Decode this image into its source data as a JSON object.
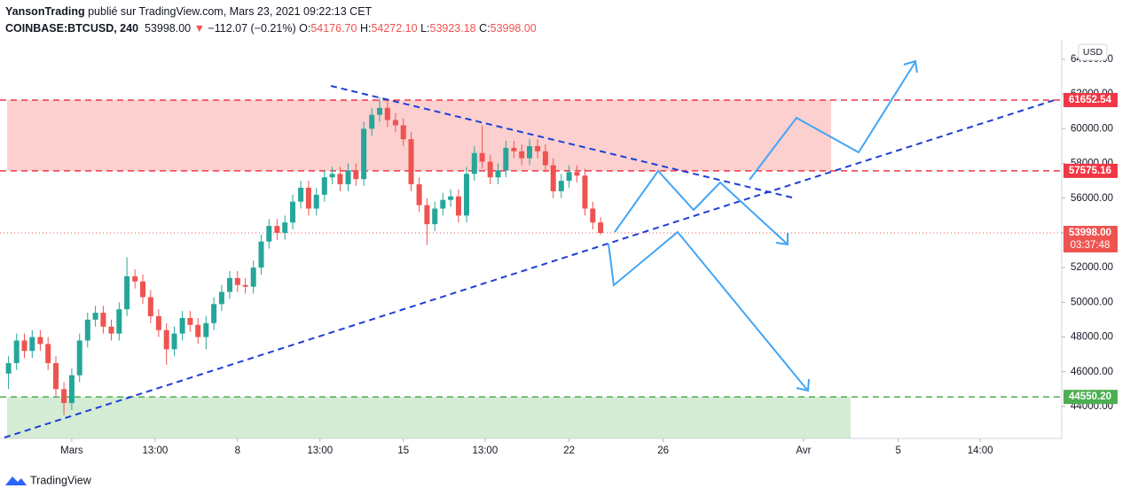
{
  "header": {
    "author": "YansonTrading",
    "published": "publié sur TradingView.com, Mars 23, 2021 09:22:13 CET",
    "symbol": "COINBASE:BTCUSD, 240",
    "price": "53998.00",
    "arrow": "▼",
    "change": "−112.07 (−0.21%)",
    "ohlc": [
      {
        "key": "O:",
        "value": "54176.70"
      },
      {
        "key": "H:",
        "value": "54272.10"
      },
      {
        "key": "L:",
        "value": "53923.18"
      },
      {
        "key": "C:",
        "value": "53998.00"
      }
    ]
  },
  "brand": "TradingView",
  "chart_data": {
    "type": "candlestick",
    "currency": "USD",
    "x": [
      -2.67,
      -2.33,
      -2,
      -1.67,
      -1.33,
      -1,
      -0.67,
      -0.33,
      0,
      0.33,
      0.67,
      1,
      1.33,
      1.67,
      2,
      2.33,
      2.67,
      3,
      3.33,
      3.67,
      4,
      4.33,
      4.67,
      5,
      5.33,
      5.67,
      6,
      6.33,
      6.67,
      7,
      7.33,
      7.67,
      8,
      8.33,
      8.67,
      9,
      9.33,
      9.67,
      10,
      10.33,
      10.67,
      11,
      11.33,
      11.67,
      12,
      12.33,
      12.67,
      13,
      13.33,
      13.67,
      14,
      14.33,
      14.67,
      15,
      15.33,
      15.67,
      16,
      16.33,
      16.67,
      17,
      17.33,
      17.67,
      18,
      18.33,
      18.67,
      19,
      19.33,
      19.67,
      20,
      20.33,
      20.67,
      21,
      21.33,
      21.67,
      22,
      22.33
    ],
    "open": [
      45900,
      46500,
      47800,
      47200,
      48000,
      47600,
      46500,
      45000,
      44200,
      45800,
      47800,
      49000,
      49400,
      48600,
      48200,
      49600,
      51500,
      51200,
      50300,
      49200,
      48400,
      47300,
      48200,
      49100,
      48700,
      48000,
      48800,
      49900,
      50600,
      51400,
      51000,
      50900,
      52000,
      53500,
      54400,
      54000,
      54600,
      55800,
      56600,
      55400,
      56200,
      57200,
      57400,
      56800,
      57600,
      57100,
      60000,
      60800,
      61200,
      60500,
      60200,
      59400,
      56800,
      55600,
      54500,
      55400,
      55900,
      56100,
      55000,
      57400,
      58600,
      58100,
      57200,
      57600,
      58900,
      58700,
      58300,
      59000,
      58700,
      57900,
      56400,
      57000,
      57500,
      57300,
      55400,
      54600
    ],
    "high": [
      46900,
      48200,
      48200,
      48400,
      48400,
      48000,
      46900,
      45400,
      46200,
      48200,
      49400,
      49800,
      49800,
      49000,
      50000,
      52600,
      51900,
      51600,
      50700,
      49600,
      48800,
      48600,
      49500,
      49500,
      49100,
      49200,
      50300,
      51000,
      51800,
      51800,
      51400,
      52400,
      53900,
      54800,
      54800,
      55000,
      56200,
      57000,
      57000,
      56600,
      57600,
      57800,
      57800,
      58000,
      58000,
      60400,
      61200,
      61800,
      61600,
      60900,
      60600,
      59800,
      57200,
      56000,
      55800,
      56300,
      56500,
      56500,
      57800,
      59000,
      60200,
      58500,
      58000,
      59300,
      59300,
      59100,
      59400,
      59400,
      59100,
      58300,
      57400,
      57900,
      57900,
      57700,
      55800,
      54900
    ],
    "low": [
      45000,
      46100,
      46800,
      46800,
      47200,
      46100,
      44600,
      43500,
      43800,
      45400,
      47400,
      48600,
      48200,
      47800,
      47800,
      49200,
      50800,
      49900,
      48800,
      48000,
      46400,
      46900,
      47800,
      48300,
      47600,
      47300,
      48400,
      49500,
      50200,
      50600,
      50500,
      50500,
      51600,
      53100,
      53600,
      53600,
      54200,
      55400,
      55000,
      55000,
      55800,
      56800,
      56400,
      56400,
      56700,
      56700,
      59600,
      60400,
      60100,
      59800,
      59000,
      56400,
      55200,
      53300,
      54100,
      55000,
      55500,
      54600,
      54600,
      57000,
      57700,
      56800,
      56800,
      57200,
      58300,
      57900,
      57900,
      58300,
      57500,
      56000,
      56000,
      56600,
      56900,
      55000,
      54200,
      53900
    ],
    "close": [
      46500,
      47800,
      47200,
      48000,
      47600,
      46500,
      45000,
      44200,
      45800,
      47800,
      49000,
      49400,
      48600,
      48200,
      49600,
      51500,
      51200,
      50300,
      49200,
      48400,
      47300,
      48200,
      49100,
      48700,
      48000,
      48800,
      49900,
      50600,
      51400,
      51000,
      50900,
      52000,
      53500,
      54400,
      54000,
      54600,
      55800,
      56600,
      55400,
      56200,
      57200,
      57400,
      56800,
      57600,
      57100,
      60000,
      60800,
      61200,
      60500,
      60200,
      59400,
      56800,
      55600,
      54500,
      55400,
      55900,
      56100,
      55000,
      57400,
      58600,
      58100,
      57200,
      57600,
      58900,
      58700,
      58300,
      59000,
      58700,
      57900,
      56400,
      57000,
      57500,
      57300,
      55400,
      54600,
      53998
    ],
    "up_color": "#26a69a",
    "down_color": "#ef5350",
    "xlim": [
      -3.03,
      41.8
    ],
    "xticks": [
      {
        "value": 0,
        "label": "Mars"
      },
      {
        "value": 3.52,
        "label": "13:00"
      },
      {
        "value": 7,
        "label": "8"
      },
      {
        "value": 10.48,
        "label": "13:00"
      },
      {
        "value": 14,
        "label": "15"
      },
      {
        "value": 17.45,
        "label": "13:00"
      },
      {
        "value": 21,
        "label": "22"
      },
      {
        "value": 24.97,
        "label": "26"
      },
      {
        "value": 30.9,
        "label": "Avr"
      },
      {
        "value": 34.9,
        "label": "5"
      },
      {
        "value": 38.36,
        "label": "14:00"
      }
    ],
    "ylim": [
      42160,
      65120
    ],
    "yticks": [
      {
        "value": 44000,
        "label": "44000.00"
      },
      {
        "value": 46000,
        "label": "46000.00"
      },
      {
        "value": 48000,
        "label": "48000.00"
      },
      {
        "value": 50000,
        "label": "50000.00"
      },
      {
        "value": 52000,
        "label": "52000.00"
      },
      {
        "value": 54000,
        "label": "54000.00"
      },
      {
        "value": 56000,
        "label": "56000.00"
      },
      {
        "value": 58000,
        "label": "58000.00"
      },
      {
        "value": 60000,
        "label": "60000.00"
      },
      {
        "value": 62000,
        "label": "62000.00"
      },
      {
        "value": 64000,
        "label": "64000.00"
      }
    ],
    "levels": [
      {
        "value": 61652.54,
        "label": "61652.54",
        "color": "#f23645"
      },
      {
        "value": 57575.16,
        "label": "57575.16",
        "color": "#f23645"
      },
      {
        "value": 44550.2,
        "label": "44550.20",
        "color": "#4caf50"
      },
      {
        "value": 53998,
        "label": "53998.00",
        "color": "#ef5350",
        "countdown": "03:37:48"
      }
    ]
  }
}
